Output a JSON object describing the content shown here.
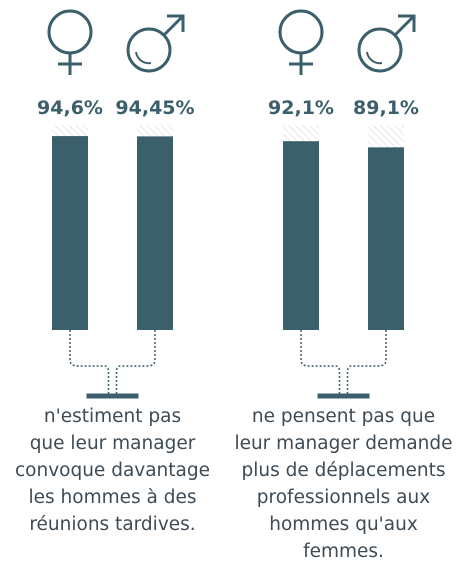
{
  "chart_data": [
    {
      "type": "bar",
      "categories": [
        null,
        null
      ],
      "values": [
        94.6,
        94.45
      ],
      "value_labels": [
        "94,6%",
        "94,45%"
      ],
      "color": "#3b5f6b",
      "ylim": [
        0,
        100
      ],
      "title": [
        "n'estiment pas",
        "que leur manager",
        "convoque davantage",
        "les hommes à des",
        "réunions tardives."
      ]
    },
    {
      "type": "bar",
      "categories": [
        null,
        null
      ],
      "values": [
        92.1,
        89.1
      ],
      "value_labels": [
        "92,1%",
        "89,1%"
      ],
      "color": "#3b5f6b",
      "ylim": [
        0,
        100
      ],
      "title": [
        "ne pensent pas que",
        "leur manager demande",
        "plus de déplacements",
        "professionnels aux",
        "hommes qu'aux",
        "femmes."
      ]
    }
  ]
}
